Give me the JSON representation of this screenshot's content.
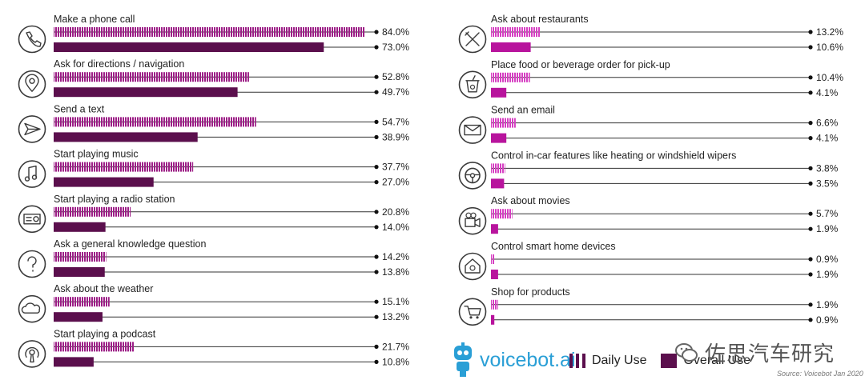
{
  "brand": {
    "name": "voicebot.ai",
    "logo_icon": "robot-icon"
  },
  "legend": {
    "daily_label": "Daily Use",
    "overall_label": "Overall Use",
    "daily_color": "#9c1e86",
    "overall_color": "#5b0f4d"
  },
  "source": "Source: Voicebot Jan 2020",
  "watermark": "佐思汽车研究",
  "chart_data": {
    "type": "bar",
    "orientation": "horizontal",
    "title": "",
    "xlim": [
      0,
      100
    ],
    "series": [
      {
        "name": "Daily Use",
        "style": "hatched"
      },
      {
        "name": "Overall Use",
        "style": "solid"
      }
    ],
    "panels": [
      {
        "colors": {
          "daily": "#9c1e86",
          "overall": "#5b0f4d"
        },
        "items": [
          {
            "label": "Make a phone call",
            "icon": "phone-icon",
            "daily": 84.0,
            "overall": 73.0,
            "daily_label": "84.0%",
            "overall_label": "73.0%"
          },
          {
            "label": "Ask for directions / navigation",
            "icon": "map-pin-icon",
            "daily": 52.8,
            "overall": 49.7,
            "daily_label": "52.8%",
            "overall_label": "49.7%"
          },
          {
            "label": "Send a text",
            "icon": "paper-plane-icon",
            "daily": 54.7,
            "overall": 38.9,
            "daily_label": "54.7%",
            "overall_label": "38.9%"
          },
          {
            "label": "Start playing music",
            "icon": "music-note-icon",
            "daily": 37.7,
            "overall": 27.0,
            "daily_label": "37.7%",
            "overall_label": "27.0%"
          },
          {
            "label": "Start playing a radio station",
            "icon": "radio-icon",
            "daily": 20.8,
            "overall": 14.0,
            "daily_label": "20.8%",
            "overall_label": "14.0%"
          },
          {
            "label": "Ask a general knowledge question",
            "icon": "question-icon",
            "daily": 14.2,
            "overall": 13.8,
            "daily_label": "14.2%",
            "overall_label": "13.8%"
          },
          {
            "label": "Ask about the weather",
            "icon": "cloud-icon",
            "daily": 15.1,
            "overall": 13.2,
            "daily_label": "15.1%",
            "overall_label": "13.2%"
          },
          {
            "label": "Start playing a podcast",
            "icon": "podcast-icon",
            "daily": 21.7,
            "overall": 10.8,
            "daily_label": "21.7%",
            "overall_label": "10.8%"
          }
        ]
      },
      {
        "colors": {
          "daily": "#d63fc2",
          "overall": "#b8149d"
        },
        "items": [
          {
            "label": "Ask about restaurants",
            "icon": "fork-knife-icon",
            "daily": 13.2,
            "overall": 10.6,
            "daily_label": "13.2%",
            "overall_label": "10.6%"
          },
          {
            "label": "Place food or beverage order for pick-up",
            "icon": "cup-icon",
            "daily": 10.4,
            "overall": 4.1,
            "daily_label": "10.4%",
            "overall_label": "4.1%"
          },
          {
            "label": "Send an email",
            "icon": "envelope-icon",
            "daily": 6.6,
            "overall": 4.1,
            "daily_label": "6.6%",
            "overall_label": "4.1%"
          },
          {
            "label": "Control in-car features like heating or windshield wipers",
            "icon": "steering-wheel-icon",
            "daily": 3.8,
            "overall": 3.5,
            "daily_label": "3.8%",
            "overall_label": "3.5%"
          },
          {
            "label": "Ask about movies",
            "icon": "camera-icon",
            "daily": 5.7,
            "overall": 1.9,
            "daily_label": "5.7%",
            "overall_label": "1.9%"
          },
          {
            "label": "Control smart home devices",
            "icon": "smart-home-icon",
            "daily": 0.9,
            "overall": 1.9,
            "daily_label": "0.9%",
            "overall_label": "1.9%"
          },
          {
            "label": "Shop for products",
            "icon": "cart-icon",
            "daily": 1.9,
            "overall": 0.9,
            "daily_label": "1.9%",
            "overall_label": "0.9%"
          }
        ]
      }
    ]
  }
}
